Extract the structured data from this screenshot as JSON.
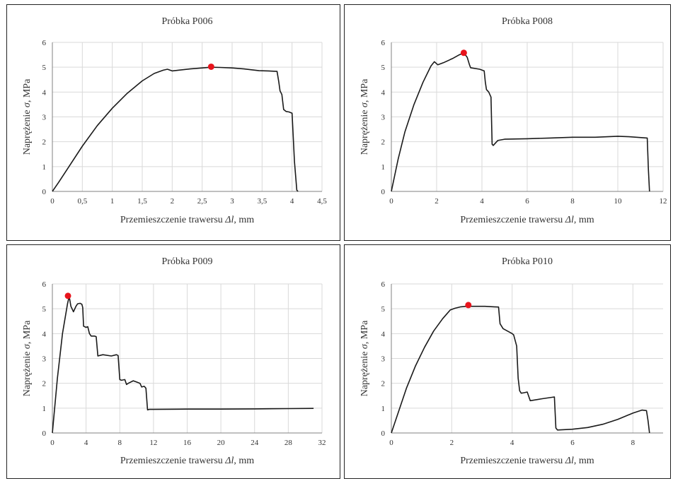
{
  "colors": {
    "curve": "#1a1a1a",
    "marker": "#e8141c",
    "grid": "#d9d9d9"
  },
  "chart_data": [
    {
      "type": "line",
      "title": "Próbka P006",
      "ylabel_text": "Naprężenie ",
      "ylabel_symbol": "σ",
      "ylabel_unit": ", MPa",
      "xlabel_text": "Przemieszczenie trawersu ",
      "xlabel_symbol": "Δl",
      "xlabel_unit": ", mm",
      "xlim": [
        0,
        4.5
      ],
      "ylim": [
        0,
        6
      ],
      "xticks": [
        0,
        0.5,
        1,
        1.5,
        2,
        2.5,
        3,
        3.5,
        4,
        4.5
      ],
      "xtick_labels": [
        "0",
        "0,5",
        "1",
        "1,5",
        "2",
        "2,5",
        "3",
        "3,5",
        "4",
        "4,5"
      ],
      "yticks": [
        0,
        1,
        2,
        3,
        4,
        5,
        6
      ],
      "ytick_labels": [
        "0",
        "1",
        "2",
        "3",
        "4",
        "5",
        "6"
      ],
      "grid": true,
      "series": [
        {
          "x": [
            0,
            0.1,
            0.25,
            0.5,
            0.75,
            1.0,
            1.25,
            1.5,
            1.7,
            1.85,
            1.92,
            2.0,
            2.1,
            2.3,
            2.5,
            2.65,
            2.8,
            3.0,
            3.2,
            3.45,
            3.6,
            3.75,
            3.78,
            3.8,
            3.83,
            3.86,
            3.9,
            3.95,
            4.0,
            4.04,
            4.08,
            4.1
          ],
          "y": [
            0,
            0.35,
            0.9,
            1.82,
            2.65,
            3.35,
            3.95,
            4.45,
            4.75,
            4.88,
            4.92,
            4.85,
            4.88,
            4.93,
            4.97,
            5.0,
            4.99,
            4.97,
            4.93,
            4.86,
            4.85,
            4.83,
            4.4,
            4.05,
            3.9,
            3.3,
            3.22,
            3.2,
            3.15,
            1.2,
            0.05,
            0
          ]
        }
      ],
      "marker": {
        "x": 2.65,
        "y": 5.02
      }
    },
    {
      "type": "line",
      "title": "Próbka P008",
      "ylabel_text": "Naprężenie ",
      "ylabel_symbol": "σ",
      "ylabel_unit": ", MPa",
      "xlabel_text": "Przemieszczenie trawersu ",
      "xlabel_symbol": "Δl",
      "xlabel_unit": ", mm",
      "xlim": [
        0,
        12
      ],
      "ylim": [
        0,
        6
      ],
      "xticks": [
        0,
        2,
        4,
        6,
        8,
        10,
        12
      ],
      "xtick_labels": [
        "0",
        "2",
        "4",
        "6",
        "8",
        "10",
        "12"
      ],
      "yticks": [
        0,
        1,
        2,
        3,
        4,
        5,
        6
      ],
      "ytick_labels": [
        "0",
        "1",
        "2",
        "3",
        "4",
        "5",
        "6"
      ],
      "grid": true,
      "series": [
        {
          "x": [
            0,
            0.3,
            0.6,
            1.0,
            1.4,
            1.75,
            1.9,
            2.05,
            2.3,
            2.7,
            3.0,
            3.2,
            3.35,
            3.45,
            3.5,
            3.9,
            4.1,
            4.15,
            4.2,
            4.3,
            4.4,
            4.45,
            4.5,
            4.7,
            5.0,
            6.0,
            7.0,
            8.0,
            9.0,
            10.0,
            10.5,
            11.3,
            11.35,
            11.4
          ],
          "y": [
            0,
            1.3,
            2.4,
            3.5,
            4.4,
            5.05,
            5.22,
            5.1,
            5.18,
            5.35,
            5.5,
            5.58,
            5.4,
            5.1,
            4.98,
            4.92,
            4.85,
            4.4,
            4.1,
            4.0,
            3.8,
            1.9,
            1.85,
            2.05,
            2.1,
            2.12,
            2.15,
            2.18,
            2.18,
            2.22,
            2.2,
            2.15,
            0.9,
            0
          ]
        }
      ],
      "marker": {
        "x": 3.2,
        "y": 5.58
      }
    },
    {
      "type": "line",
      "title": "Próbka P009",
      "ylabel_text": "Naprężenie ",
      "ylabel_symbol": "σ",
      "ylabel_unit": ", MPa",
      "xlabel_text": "Przemieszczenie trawersu ",
      "xlabel_symbol": "Δl",
      "xlabel_unit": ", mm",
      "xlim": [
        0,
        32
      ],
      "ylim": [
        0,
        6
      ],
      "xticks": [
        0,
        4,
        8,
        12,
        16,
        20,
        24,
        28,
        32
      ],
      "xtick_labels": [
        "0",
        "4",
        "8",
        "12",
        "16",
        "20",
        "24",
        "28",
        "32"
      ],
      "yticks": [
        0,
        1,
        2,
        3,
        4,
        5,
        6
      ],
      "ytick_labels": [
        "0",
        "1",
        "2",
        "3",
        "4",
        "5",
        "6"
      ],
      "grid": true,
      "series": [
        {
          "x": [
            0,
            0.6,
            1.2,
            1.8,
            2.0,
            2.2,
            2.5,
            2.8,
            3.0,
            3.3,
            3.5,
            3.6,
            3.7,
            4.0,
            4.2,
            4.4,
            4.6,
            5.0,
            5.2,
            5.4,
            5.6,
            6.0,
            7.0,
            7.6,
            7.8,
            8.0,
            8.2,
            8.6,
            8.8,
            9.0,
            9.6,
            10.0,
            10.4,
            10.6,
            10.9,
            11.1,
            11.3,
            11.5,
            12,
            16,
            20,
            24,
            28,
            31
          ],
          "y": [
            0,
            2.2,
            4.0,
            5.2,
            5.5,
            5.1,
            4.88,
            5.1,
            5.2,
            5.22,
            5.18,
            5.05,
            4.3,
            4.25,
            4.28,
            4.0,
            3.9,
            3.9,
            3.88,
            3.1,
            3.12,
            3.15,
            3.1,
            3.15,
            3.12,
            2.15,
            2.12,
            2.15,
            1.95,
            2.0,
            2.1,
            2.05,
            2.0,
            1.85,
            1.88,
            1.8,
            0.93,
            0.95,
            0.95,
            0.96,
            0.96,
            0.97,
            0.98,
            0.99
          ]
        }
      ],
      "marker": {
        "x": 1.85,
        "y": 5.52
      }
    },
    {
      "type": "line",
      "title": "Próbka P010",
      "ylabel_text": "Naprężenie ",
      "ylabel_symbol": "σ",
      "ylabel_unit": ", MPa",
      "xlabel_text": "Przemieszczenie trawersu ",
      "xlabel_symbol": "Δl",
      "xlabel_unit": ", mm",
      "xlim": [
        0,
        9
      ],
      "ylim": [
        0,
        6
      ],
      "xticks": [
        0,
        2,
        4,
        6,
        8
      ],
      "xtick_labels": [
        "0",
        "2",
        "4",
        "6",
        "8"
      ],
      "yticks": [
        0,
        1,
        2,
        3,
        4,
        5,
        6
      ],
      "ytick_labels": [
        "0",
        "1",
        "2",
        "3",
        "4",
        "5",
        "6"
      ],
      "grid": true,
      "series": [
        {
          "x": [
            0,
            0.25,
            0.5,
            0.8,
            1.1,
            1.4,
            1.7,
            1.95,
            2.1,
            2.3,
            2.5,
            2.8,
            3.1,
            3.4,
            3.55,
            3.6,
            3.7,
            3.85,
            4.0,
            4.05,
            4.15,
            4.2,
            4.25,
            4.3,
            4.4,
            4.5,
            4.6,
            5.0,
            5.4,
            5.45,
            5.5,
            6.0,
            6.5,
            7.0,
            7.5,
            8.0,
            8.3,
            8.45,
            8.5,
            8.55
          ],
          "y": [
            0,
            0.9,
            1.8,
            2.7,
            3.45,
            4.1,
            4.6,
            4.95,
            5.02,
            5.08,
            5.1,
            5.1,
            5.1,
            5.08,
            5.07,
            4.4,
            4.2,
            4.1,
            4.0,
            3.95,
            3.5,
            2.2,
            1.7,
            1.6,
            1.62,
            1.65,
            1.3,
            1.38,
            1.45,
            0.2,
            0.12,
            0.15,
            0.22,
            0.35,
            0.55,
            0.8,
            0.92,
            0.9,
            0.5,
            0
          ]
        }
      ],
      "marker": {
        "x": 2.55,
        "y": 5.15
      }
    }
  ]
}
